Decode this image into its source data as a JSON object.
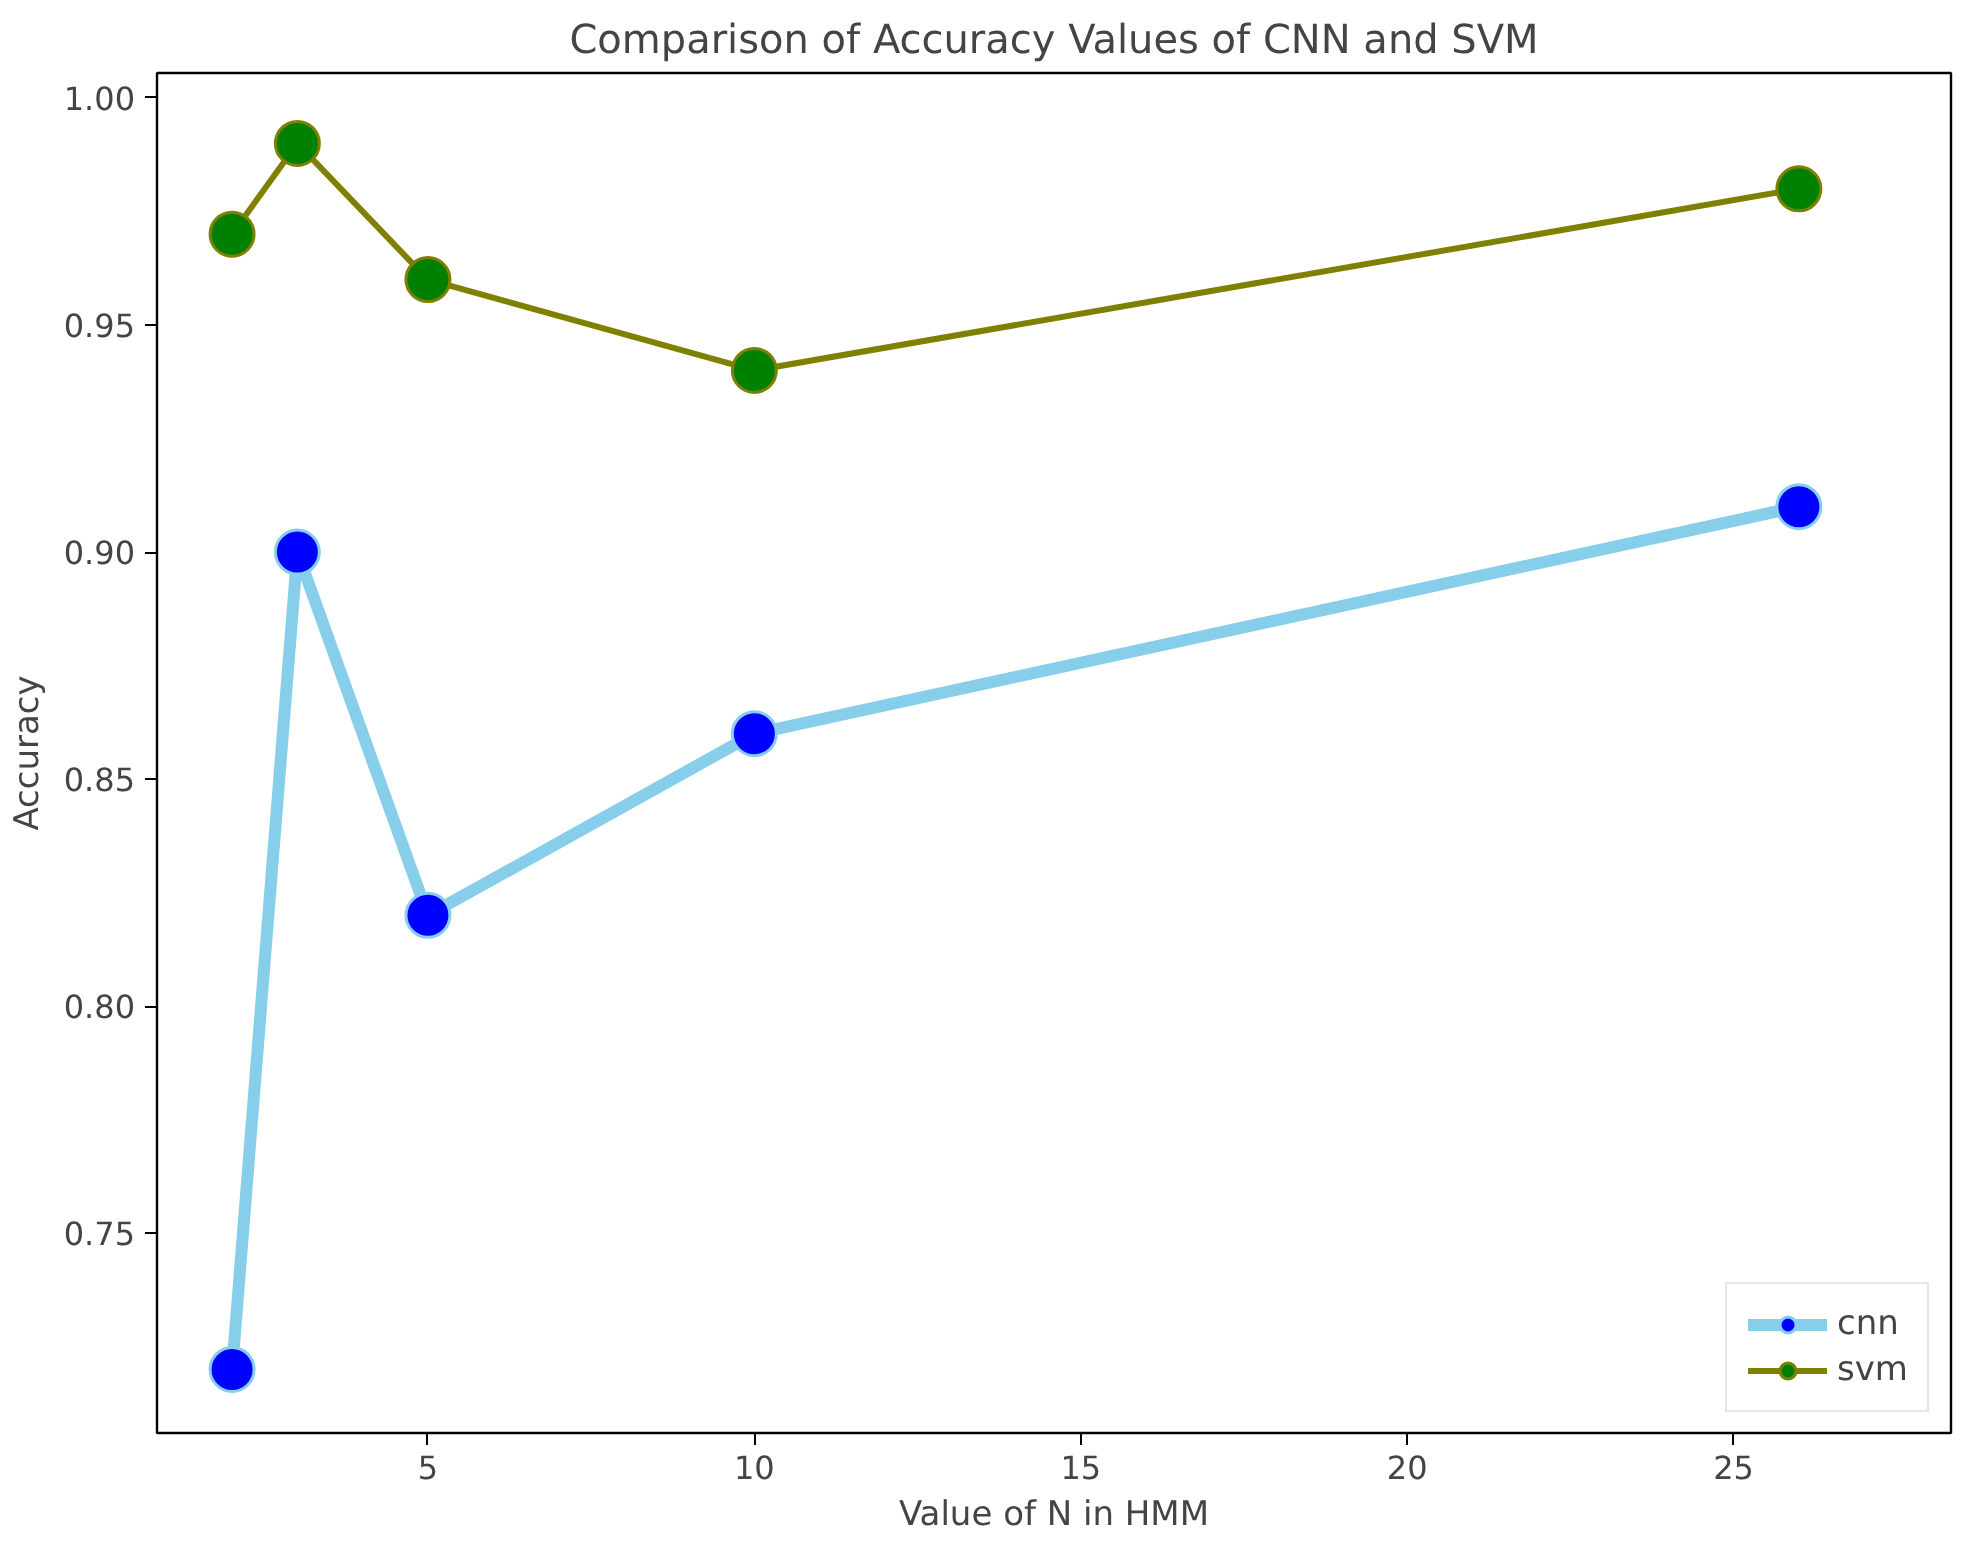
{
  "chart_data": {
    "type": "line",
    "title": "Comparison of Accuracy Values of CNN and SVM",
    "xlabel": "Value of N in HMM",
    "ylabel": "Accuracy",
    "x": [
      2,
      3,
      5,
      10,
      26
    ],
    "series": [
      {
        "name": "cnn",
        "color": "#87ceeb",
        "colors": [
          "#0000ff",
          "#0000ff",
          "#0000ff",
          "#0000ff",
          "#0000ff"
        ],
        "values": [
          0.72,
          0.9,
          0.82,
          0.86,
          0.91
        ]
      },
      {
        "name": "svm",
        "color": "#808000",
        "colors": [
          "#008000",
          "#008000",
          "#008000",
          "#008000",
          "#008000"
        ],
        "values": [
          0.97,
          0.99,
          0.96,
          0.94,
          0.98
        ]
      }
    ],
    "xlim": [
      0.85,
      28.33
    ],
    "ylim": [
      0.706,
      1.0055
    ],
    "xticks": [
      5,
      10,
      15,
      20,
      25
    ],
    "yticks": [
      {
        "value": 0.75,
        "label": "0.75"
      },
      {
        "value": 0.8,
        "label": "0.80"
      },
      {
        "value": 0.85,
        "label": "0.85"
      },
      {
        "value": 0.9,
        "label": "0.90"
      },
      {
        "value": 0.95,
        "label": "0.95"
      },
      {
        "value": 1.0,
        "label": "1.00"
      }
    ],
    "grid": false,
    "legend": "bottom right",
    "marker": "circle",
    "line_style": "solid"
  }
}
